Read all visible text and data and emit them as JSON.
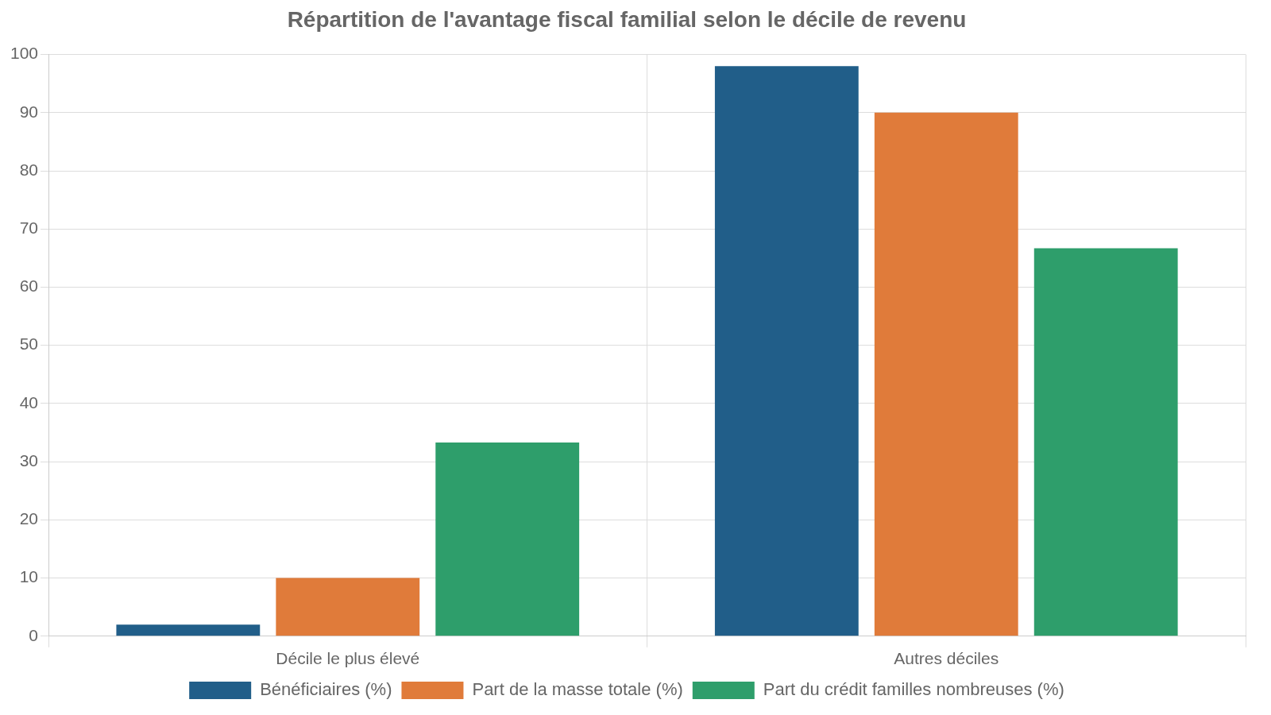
{
  "chart_data": {
    "type": "bar",
    "title": "Répartition de l'avantage fiscal familial selon le décile de revenu",
    "categories": [
      "Décile le plus élevé",
      "Autres déciles"
    ],
    "series": [
      {
        "name": "Bénéficiaires (%)",
        "color": "#215e89",
        "values": [
          2,
          98
        ]
      },
      {
        "name": "Part de la masse totale (%)",
        "color": "#e07b3a",
        "values": [
          10,
          90
        ]
      },
      {
        "name": "Part du crédit familles nombreuses (%)",
        "color": "#2e9e6b",
        "values": [
          33.3,
          66.7
        ]
      }
    ],
    "ylim": [
      0,
      100
    ],
    "yticks": [
      0,
      10,
      20,
      30,
      40,
      50,
      60,
      70,
      80,
      90,
      100
    ],
    "grid": true,
    "legend": "bottom"
  }
}
